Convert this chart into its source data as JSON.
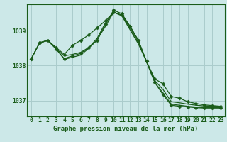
{
  "background_color": "#cce8e8",
  "plot_bg_color": "#cce8e8",
  "grid_color": "#aacccc",
  "line_color": "#1a5c1a",
  "marker_color": "#1a5c1a",
  "title": "Graphe pression niveau de la mer (hPa)",
  "xlim": [
    -0.5,
    23.5
  ],
  "ylim": [
    1036.55,
    1039.75
  ],
  "yticks": [
    1037,
    1038,
    1039
  ],
  "xticks": [
    0,
    1,
    2,
    3,
    4,
    5,
    6,
    7,
    8,
    9,
    10,
    11,
    12,
    13,
    14,
    15,
    16,
    17,
    18,
    19,
    20,
    21,
    22,
    23
  ],
  "series": [
    [
      1038.2,
      1038.65,
      1038.72,
      1038.48,
      1038.2,
      1038.28,
      1038.35,
      1038.52,
      1038.72,
      1039.18,
      1039.58,
      1039.48,
      1039.12,
      1038.72,
      1038.12,
      1037.62,
      1037.48,
      1037.12,
      1037.07,
      1036.97,
      1036.92,
      1036.88,
      1036.86,
      1036.84
    ],
    [
      1038.2,
      1038.65,
      1038.72,
      1038.48,
      1038.28,
      1038.32,
      1038.38,
      1038.52,
      1038.78,
      1039.22,
      1039.52,
      1039.42,
      1039.02,
      1038.62,
      1038.12,
      1037.57,
      1037.32,
      1036.97,
      1036.94,
      1036.9,
      1036.87,
      1036.85,
      1036.84,
      1036.84
    ],
    [
      1038.2,
      1038.65,
      1038.72,
      1038.48,
      1038.18,
      1038.24,
      1038.3,
      1038.5,
      1038.74,
      1039.12,
      1039.52,
      1039.44,
      1039.07,
      1038.67,
      1038.1,
      1037.52,
      1037.22,
      1036.9,
      1036.87,
      1036.84,
      1036.82,
      1036.8,
      1036.8,
      1036.8
    ],
    [
      1038.2,
      1038.65,
      1038.72,
      1038.52,
      1038.32,
      1038.58,
      1038.72,
      1038.88,
      1039.08,
      1039.28,
      1039.52,
      1039.44,
      1039.12,
      1038.72,
      1038.12,
      1037.52,
      1037.17,
      1036.87,
      1036.84,
      1036.82,
      1036.8,
      1036.79,
      1036.79,
      1036.79
    ]
  ],
  "series_with_markers": [
    0,
    3
  ],
  "marker_size": 2.5,
  "linewidth": 0.9,
  "title_fontsize": 6.5,
  "tick_fontsize": 5.8
}
